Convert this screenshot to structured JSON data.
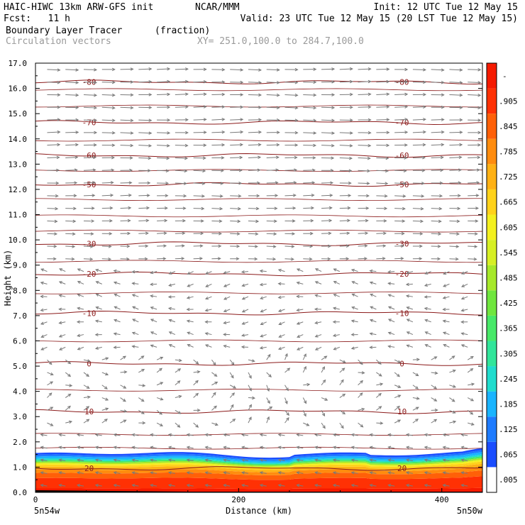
{
  "header": {
    "model_line": "HAIC-HIWC 13km ARW-GFS init",
    "center": "NCAR/MMM",
    "init_line": "Init: 12 UTC Tue 12 May 15",
    "fcst_line": "Fcst:   11 h",
    "valid_line": "Valid: 23 UTC Tue 12 May 15 (20 LST Tue 12 May 15)",
    "field_name": "Boundary Layer Tracer",
    "field_units": "(fraction)",
    "overlay_name": "Circulation vectors",
    "xsection_line": "XY= 251.0,100.0 to 284.7,100.0"
  },
  "chart_data": {
    "type": "heatmap",
    "xlabel": "Distance (km)",
    "ylabel": "Height (km)",
    "xlim": [
      0,
      440
    ],
    "ylim": [
      0,
      17
    ],
    "x_ticks": [
      0,
      200,
      400
    ],
    "y_ticks": [
      "0.0",
      "1.0",
      "2.0",
      "3.0",
      "4.0",
      "5.0",
      "6.0",
      "7.0",
      "8.0",
      "9.0",
      "10.0",
      "11.0",
      "12.0",
      "13.0",
      "14.0",
      "15.0",
      "16.0",
      "17.0"
    ],
    "x_endpoint_labels": [
      "5n54w",
      "5n50w"
    ],
    "colorbar_labels": [
      ".005",
      ".065",
      ".125",
      ".185",
      ".245",
      ".305",
      ".365",
      ".425",
      ".485",
      ".545",
      ".605",
      ".665",
      ".725",
      ".785",
      ".845",
      ".905"
    ],
    "colorbar_top_label": "-",
    "colorbar_colors": [
      "#ffffff",
      "#1a4dff",
      "#1e7bff",
      "#19b4ff",
      "#20dccd",
      "#31e59a",
      "#47e868",
      "#6fe63e",
      "#a6e82a",
      "#d6ef24",
      "#f3f01f",
      "#ffd21a",
      "#ffb114",
      "#ff8c0e",
      "#ff6008",
      "#ff3104",
      "#f51a00"
    ],
    "temperature_contours": [
      {
        "label": "-80",
        "height_km": 16.25
      },
      {
        "label": "-70",
        "height_km": 14.65
      },
      {
        "label": "-60",
        "height_km": 13.35
      },
      {
        "label": "-50",
        "height_km": 12.2
      },
      {
        "label": "-30",
        "height_km": 9.85
      },
      {
        "label": "-20",
        "height_km": 8.65
      },
      {
        "label": "-10",
        "height_km": 7.1
      },
      {
        "label": "0",
        "height_km": 5.1
      },
      {
        "label": "10",
        "height_km": 3.2
      },
      {
        "label": "20",
        "height_km": 0.95
      }
    ],
    "boundary_layer_top_km": 1.5,
    "grid": false
  }
}
